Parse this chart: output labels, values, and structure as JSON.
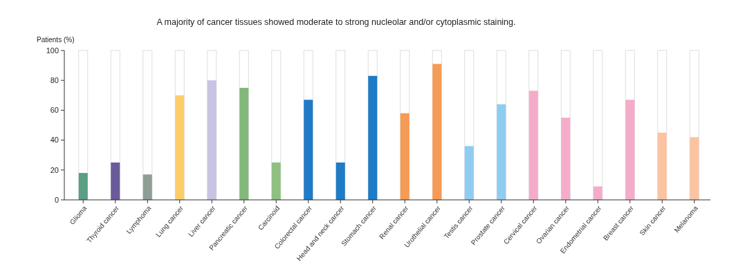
{
  "chart_data": {
    "type": "bar",
    "title": "A majority of cancer tissues showed moderate to strong nucleolar and/or cytoplasmic staining.",
    "ylabel": "Patients (%)",
    "categories": [
      "Glioma",
      "Thyroid cancer",
      "Lymphoma",
      "Lung cancer",
      "Liver cancer",
      "Pancreatic cancer",
      "Carcinoid",
      "Colorectal cancer",
      "Head and neck cancer",
      "Stomach cancer",
      "Renal cancer",
      "Urothelial cancer",
      "Testis cancer",
      "Prostate cancer",
      "Cervical cancer",
      "Ovarian cancer",
      "Endometrial cancer",
      "Breast cancer",
      "Skin cancer",
      "Melanoma"
    ],
    "values": [
      18,
      25,
      17,
      70,
      80,
      75,
      25,
      67,
      25,
      83,
      58,
      91,
      36,
      64,
      73,
      55,
      9,
      67,
      45,
      42
    ],
    "colors": [
      "#5a9e84",
      "#6b5a9a",
      "#8e9e96",
      "#fdcd6a",
      "#c9c2e2",
      "#82b97a",
      "#8fc081",
      "#1f7bc6",
      "#1f7bc6",
      "#1f7bc6",
      "#f59b56",
      "#f59b56",
      "#8ecdf0",
      "#8ecdf0",
      "#f5abca",
      "#f5abca",
      "#f5abca",
      "#f5abca",
      "#fac4a0",
      "#fac4a0"
    ],
    "ylim": [
      0,
      100
    ],
    "yticks": [
      0,
      20,
      40,
      60,
      80,
      100
    ],
    "grid": false
  }
}
